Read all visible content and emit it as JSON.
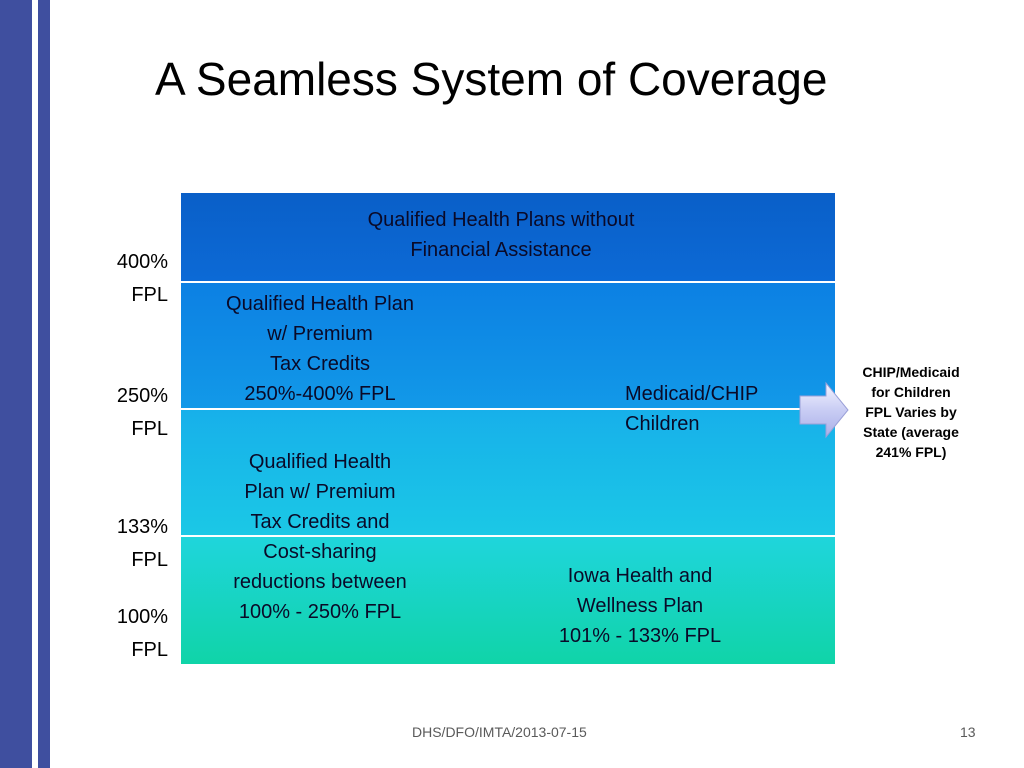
{
  "slide": {
    "title": "A Seamless System of Coverage",
    "footer": "DHS/DFO/IMTA/2013-07-15",
    "page_number": "13"
  },
  "y_labels": [
    {
      "pct": "400%",
      "fpl": "FPL"
    },
    {
      "pct": "250%",
      "fpl": "FPL"
    },
    {
      "pct": "133%",
      "fpl": "FPL"
    },
    {
      "pct": "100%",
      "fpl": "FPL"
    }
  ],
  "boxes": {
    "top": [
      "Qualified Health Plans without",
      "Financial Assistance"
    ],
    "qhp_premium": [
      "Qualified Health Plan",
      "w/ Premium",
      "Tax Credits",
      "250%-400% FPL"
    ],
    "qhp_cost_sharing": [
      "Qualified Health",
      "Plan w/ Premium",
      "Tax Credits and",
      "Cost-sharing",
      "reductions between",
      "100% - 250% FPL"
    ],
    "medicaid_chip": [
      "Medicaid/CHIP",
      "Children"
    ],
    "iowa": [
      "Iowa Health and",
      "Wellness Plan",
      "101% - 133% FPL"
    ]
  },
  "callout": [
    "CHIP/Medicaid",
    "for Children",
    "FPL Varies by",
    "State (average",
    "241% FPL)"
  ],
  "colors": {
    "side_bar": "#3f4f9f",
    "band_top": "#0a5fc8",
    "band_2": "#1299e8",
    "band_3": "#1bc8e6",
    "band_4": "#10d4a8"
  }
}
